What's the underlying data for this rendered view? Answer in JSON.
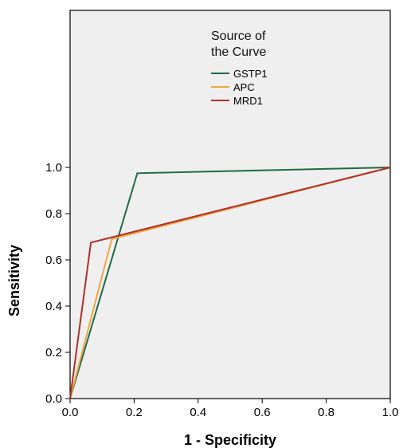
{
  "chart_data": {
    "type": "line",
    "xlabel": "1 - Specificity",
    "ylabel": "Sensitivity",
    "xlim": [
      0,
      1
    ],
    "ylim": [
      0,
      1
    ],
    "xticks": [
      "0.0",
      "0.2",
      "0.4",
      "0.6",
      "0.8",
      "1.0"
    ],
    "yticks": [
      "0.0",
      "0.2",
      "0.4",
      "0.6",
      "0.8",
      "1.0"
    ],
    "legend": {
      "title_line1": "Source of",
      "title_line2": "the Curve",
      "placement": "top-right"
    },
    "series": [
      {
        "name": "GSTP1",
        "color": "#1e6b45",
        "points": [
          [
            0,
            0
          ],
          [
            0.21,
            0.975
          ],
          [
            1,
            1
          ]
        ]
      },
      {
        "name": "APC",
        "color": "#f0a640",
        "points": [
          [
            0,
            0
          ],
          [
            0.13,
            0.69
          ],
          [
            1,
            1
          ]
        ]
      },
      {
        "name": "MRD1",
        "color": "#b0302a",
        "points": [
          [
            0,
            0
          ],
          [
            0.065,
            0.675
          ],
          [
            1,
            1
          ]
        ]
      }
    ],
    "plot_background": "#efefef",
    "grid": false
  }
}
